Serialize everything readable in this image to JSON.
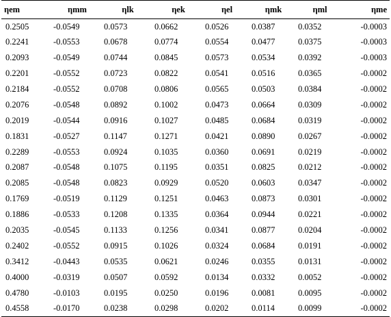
{
  "table": {
    "headers": [
      "ηem",
      "ηmm",
      "ηlk",
      "ηek",
      "ηel",
      "ηmk",
      "ηml",
      "ηme"
    ],
    "rows": [
      [
        "0.2505",
        "-0.0549",
        "0.0573",
        "0.0662",
        "0.0526",
        "0.0387",
        "0.0352",
        "-0.0003"
      ],
      [
        "0.2241",
        "-0.0553",
        "0.0678",
        "0.0774",
        "0.0554",
        "0.0477",
        "0.0375",
        "-0.0003"
      ],
      [
        "0.2093",
        "-0.0549",
        "0.0744",
        "0.0845",
        "0.0573",
        "0.0534",
        "0.0392",
        "-0.0003"
      ],
      [
        "0.2201",
        "-0.0552",
        "0.0723",
        "0.0822",
        "0.0541",
        "0.0516",
        "0.0365",
        "-0.0002"
      ],
      [
        "0.2184",
        "-0.0552",
        "0.0708",
        "0.0806",
        "0.0565",
        "0.0503",
        "0.0384",
        "-0.0002"
      ],
      [
        "0.2076",
        "-0.0548",
        "0.0892",
        "0.1002",
        "0.0473",
        "0.0664",
        "0.0309",
        "-0.0002"
      ],
      [
        "0.2019",
        "-0.0544",
        "0.0916",
        "0.1027",
        "0.0485",
        "0.0684",
        "0.0319",
        "-0.0002"
      ],
      [
        "0.1831",
        "-0.0527",
        "0.1147",
        "0.1271",
        "0.0421",
        "0.0890",
        "0.0267",
        "-0.0002"
      ],
      [
        "0.2289",
        "-0.0553",
        "0.0924",
        "0.1035",
        "0.0360",
        "0.0691",
        "0.0219",
        "-0.0002"
      ],
      [
        "0.2087",
        "-0.0548",
        "0.1075",
        "0.1195",
        "0.0351",
        "0.0825",
        "0.0212",
        "-0.0002"
      ],
      [
        "0.2085",
        "-0.0548",
        "0.0823",
        "0.0929",
        "0.0520",
        "0.0603",
        "0.0347",
        "-0.0002"
      ],
      [
        "0.1769",
        "-0.0519",
        "0.1129",
        "0.1251",
        "0.0463",
        "0.0873",
        "0.0301",
        "-0.0002"
      ],
      [
        "0.1886",
        "-0.0533",
        "0.1208",
        "0.1335",
        "0.0364",
        "0.0944",
        "0.0221",
        "-0.0002"
      ],
      [
        "0.2035",
        "-0.0545",
        "0.1133",
        "0.1256",
        "0.0341",
        "0.0877",
        "0.0204",
        "-0.0002"
      ],
      [
        "0.2402",
        "-0.0552",
        "0.0915",
        "0.1026",
        "0.0324",
        "0.0684",
        "0.0191",
        "-0.0002"
      ],
      [
        "0.3412",
        "-0.0443",
        "0.0535",
        "0.0621",
        "0.0246",
        "0.0355",
        "0.0131",
        "-0.0002"
      ],
      [
        "0.4000",
        "-0.0319",
        "0.0507",
        "0.0592",
        "0.0134",
        "0.0332",
        "0.0052",
        "-0.0002"
      ],
      [
        "0.4780",
        "-0.0103",
        "0.0195",
        "0.0250",
        "0.0196",
        "0.0081",
        "0.0095",
        "-0.0002"
      ],
      [
        "0.4558",
        "-0.0170",
        "0.0238",
        "0.0298",
        "0.0202",
        "0.0114",
        "0.0099",
        "-0.0002"
      ]
    ]
  }
}
